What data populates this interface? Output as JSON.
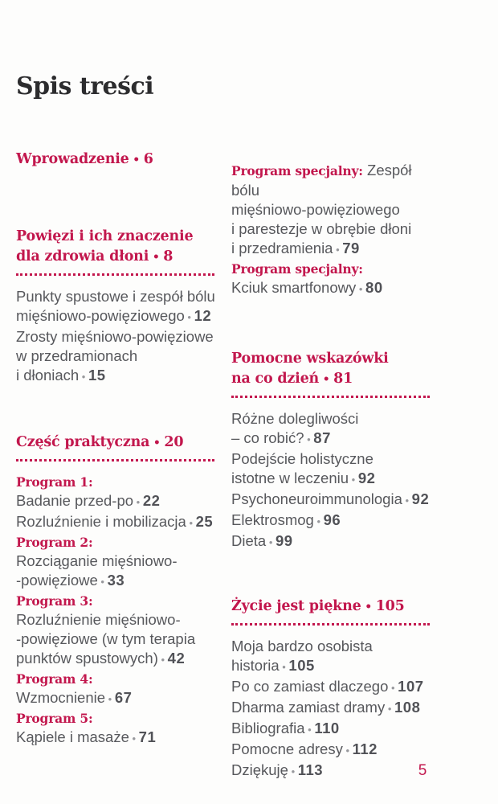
{
  "page": {
    "title": "Spis treści",
    "page_number": "5",
    "bullet": "•",
    "accent_color": "#c2174d",
    "body_text_color": "#57585c",
    "title_color": "#2c2c2e"
  },
  "toc": {
    "left_column": [
      {
        "id": "wprowadzenie",
        "heading": {
          "lines": [
            "Wprowadzenie"
          ],
          "page": "6"
        },
        "divider": false,
        "items": []
      },
      {
        "id": "powiezi",
        "heading": {
          "lines": [
            "Powięzi i ich znaczenie",
            "dla zdrowia dłoni"
          ],
          "page": "8"
        },
        "divider": true,
        "items": [
          {
            "kind": "entry",
            "lines": [
              "Punkty spustowe i zespół bólu",
              "mięśniowo-powięziowego"
            ],
            "page": "12"
          },
          {
            "kind": "entry",
            "lines": [
              "Zrosty mięśniowo-powięziowe",
              "w przedramionach",
              "i dłoniach"
            ],
            "page": "15"
          }
        ]
      },
      {
        "id": "czesc-praktyczna",
        "heading": {
          "lines": [
            "Część praktyczna"
          ],
          "page": "20"
        },
        "divider": true,
        "items": [
          {
            "kind": "label",
            "text": "Program 1:"
          },
          {
            "kind": "entry",
            "lines": [
              "Badanie przed-po"
            ],
            "page": "22"
          },
          {
            "kind": "entry",
            "lines": [
              "Rozluźnienie i mobilizacja"
            ],
            "page": "25"
          },
          {
            "kind": "label",
            "text": "Program 2:"
          },
          {
            "kind": "entry",
            "lines": [
              "Rozciąganie mięśniowo-",
              "-powięziowe"
            ],
            "page": "33"
          },
          {
            "kind": "label",
            "text": "Program 3:"
          },
          {
            "kind": "entry",
            "lines": [
              "Rozluźnienie mięśniowo-",
              "-powięziowe (w tym terapia",
              "punktów spustowych)"
            ],
            "page": "42"
          },
          {
            "kind": "label",
            "text": "Program 4:"
          },
          {
            "kind": "entry",
            "lines": [
              "Wzmocnienie"
            ],
            "page": "67"
          },
          {
            "kind": "label",
            "text": "Program 5:"
          },
          {
            "kind": "entry",
            "lines": [
              "Kąpiele i masaże"
            ],
            "page": "71"
          }
        ]
      }
    ],
    "right_column": [
      {
        "id": "programy-specjalne",
        "heading": null,
        "divider": false,
        "items": [
          {
            "kind": "entry",
            "label": "Program specjalny:",
            "lines": [
              "Zespół bólu",
              "mięśniowo-powięziowego",
              "i parestezje w obrębie dłoni",
              "i przedramienia"
            ],
            "page": "79"
          },
          {
            "kind": "label",
            "text": "Program specjalny:"
          },
          {
            "kind": "entry",
            "lines": [
              "Kciuk smartfonowy"
            ],
            "page": "80"
          }
        ]
      },
      {
        "id": "pomocne-wskazowki",
        "heading": {
          "lines": [
            "Pomocne wskazówki",
            "na co dzień"
          ],
          "page": "81"
        },
        "divider": true,
        "items": [
          {
            "kind": "entry",
            "lines": [
              "Różne dolegliwości",
              "– co robić?"
            ],
            "page": "87"
          },
          {
            "kind": "entry",
            "lines": [
              "Podejście holistyczne",
              "istotne w leczeniu"
            ],
            "page": "92"
          },
          {
            "kind": "entry",
            "lines": [
              "Psychoneuroimmunologia"
            ],
            "page": "92"
          },
          {
            "kind": "entry",
            "lines": [
              "Elektrosmog"
            ],
            "page": "96"
          },
          {
            "kind": "entry",
            "lines": [
              "Dieta"
            ],
            "page": "99"
          }
        ]
      },
      {
        "id": "zycie-jest-piekne",
        "heading": {
          "lines": [
            "Życie jest piękne"
          ],
          "page": "105"
        },
        "divider": true,
        "items": [
          {
            "kind": "entry",
            "lines": [
              "Moja bardzo osobista",
              "historia"
            ],
            "page": "105"
          },
          {
            "kind": "entry",
            "lines": [
              "Po co zamiast dlaczego"
            ],
            "page": "107"
          },
          {
            "kind": "entry",
            "lines": [
              "Dharma zamiast dramy"
            ],
            "page": "108"
          },
          {
            "kind": "entry",
            "lines": [
              "Bibliografia"
            ],
            "page": "110"
          },
          {
            "kind": "entry",
            "lines": [
              "Pomocne adresy"
            ],
            "page": "112"
          },
          {
            "kind": "entry",
            "lines": [
              "Dziękuję"
            ],
            "page": "113"
          }
        ]
      }
    ]
  }
}
